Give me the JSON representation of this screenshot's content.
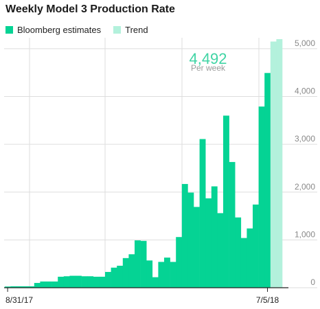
{
  "chart_data": {
    "type": "bar",
    "title": "Weekly Model 3 Production Rate",
    "xlabel": "",
    "ylabel": "",
    "ylim": [
      0,
      5200
    ],
    "yticks": [
      "0",
      "1,000",
      "2,000",
      "3,000",
      "4,000",
      "5,000"
    ],
    "x_tick_labels": [
      "8/31/17",
      "7/5/18"
    ],
    "legend": [
      "Bloomberg estimates",
      "Trend"
    ],
    "legend_position": "top-left",
    "grid": true,
    "colors": {
      "estimates": "#05d394",
      "trend": "#b3f1dc",
      "grid": "#dddddd",
      "callout": "#3fd4a4"
    },
    "annotation": {
      "value": "4,492",
      "label": "Per week"
    },
    "series": [
      {
        "name": "Bloomberg estimates",
        "start_date": "2017-08-31",
        "values": [
          25,
          30,
          30,
          30,
          30,
          100,
          130,
          130,
          130,
          230,
          240,
          250,
          250,
          240,
          240,
          230,
          230,
          330,
          420,
          460,
          620,
          700,
          990,
          980,
          570,
          220,
          540,
          630,
          540,
          1060,
          2170,
          1990,
          1690,
          3110,
          1870,
          2120,
          1560,
          3600,
          2630,
          1470,
          1040,
          1240,
          1740,
          3790,
          4492
        ]
      },
      {
        "name": "Trend",
        "start_date": "2018-07-12",
        "values": [
          5150,
          5200
        ]
      }
    ]
  }
}
